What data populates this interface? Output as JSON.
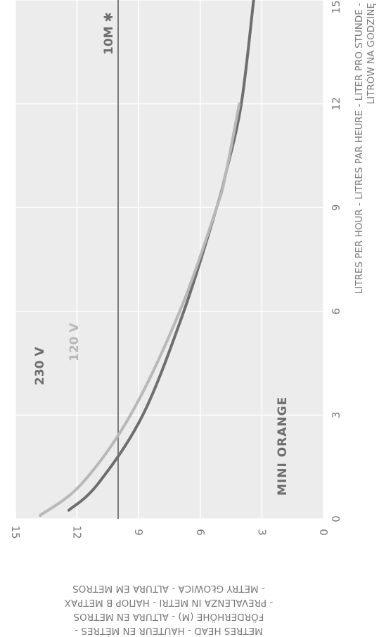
{
  "chart_data": {
    "type": "line",
    "model_label": "MINI ORANGE",
    "reference_label": "10M ✱",
    "reference_y": 10,
    "xlim": [
      0,
      15
    ],
    "ylim": [
      0,
      15
    ],
    "x_ticks": [
      "0",
      "3",
      "6",
      "9",
      "12",
      "15"
    ],
    "y_ticks": [
      "0",
      "3",
      "6",
      "9",
      "12",
      "15"
    ],
    "xlabel_lines": [
      "LITRES PER HOUR - LITRES PAR HEURE - LITER PRO STUNDE -",
      "LITRÓW NA GODZINĘ"
    ],
    "ylabel_lines": [
      "METRES HEAD - HAUTEUR EN MÈTRES -",
      "FÖRDERHÖHE (M) - ALTURA EN METROS",
      "- PREVALENZA IN METRI -  НАПОР В МЕТРАХ",
      "- METRY GŁOWICA - ALTURA EM METROS"
    ],
    "grid": true,
    "series": [
      {
        "name": "230 V",
        "color": "#6e6e6e",
        "points": [
          [
            15.0,
            3.4
          ],
          [
            12.0,
            4.0
          ],
          [
            10.0,
            4.75
          ],
          [
            9.0,
            5.2
          ],
          [
            6.0,
            6.8
          ],
          [
            3.0,
            8.8
          ],
          [
            1.0,
            11.0
          ],
          [
            0.25,
            12.4
          ]
        ]
      },
      {
        "name": "120 V",
        "color": "#b8b8b8",
        "points": [
          [
            12.0,
            4.1
          ],
          [
            10.0,
            4.75
          ],
          [
            9.0,
            5.2
          ],
          [
            6.0,
            7.0
          ],
          [
            3.0,
            9.4
          ],
          [
            1.0,
            11.8
          ],
          [
            0.1,
            13.8
          ]
        ]
      }
    ]
  }
}
